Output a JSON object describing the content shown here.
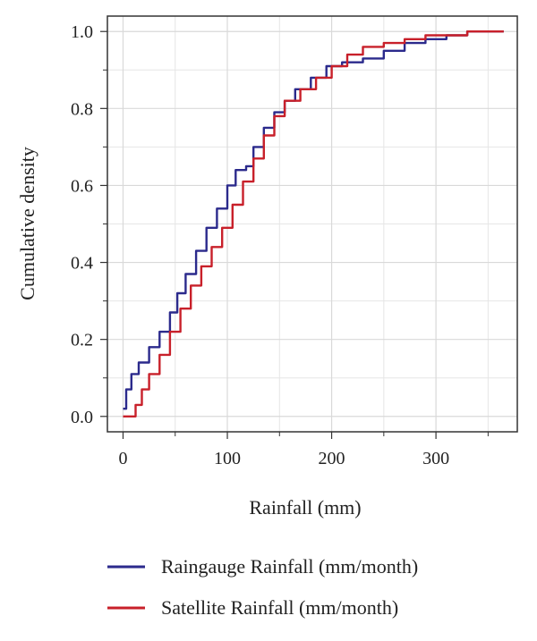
{
  "chart_data": {
    "type": "line",
    "title": "",
    "xlabel": "Rainfall (mm)",
    "ylabel": "Cumulative density",
    "xlim": [
      -15,
      378
    ],
    "ylim": [
      -0.04,
      1.04
    ],
    "x_ticks": [
      0,
      100,
      200,
      300
    ],
    "x_tick_labels": [
      "0",
      "100",
      "200",
      "300"
    ],
    "y_ticks": [
      0.0,
      0.2,
      0.4,
      0.6,
      0.8,
      1.0
    ],
    "y_tick_labels": [
      "0.0",
      "0.2",
      "0.4",
      "0.6",
      "0.8",
      "1.0"
    ],
    "grid": true,
    "legend_position": "bottom",
    "series": [
      {
        "name": "Raingauge Rainfall (mm/month)",
        "color": "#2b2a8c",
        "x": [
          0,
          3,
          8,
          15,
          25,
          35,
          45,
          52,
          60,
          70,
          80,
          90,
          100,
          108,
          118,
          125,
          135,
          145,
          155,
          165,
          180,
          195,
          210,
          230,
          250,
          270,
          290,
          310,
          330,
          350,
          365
        ],
        "y": [
          0.02,
          0.07,
          0.11,
          0.14,
          0.18,
          0.22,
          0.27,
          0.32,
          0.37,
          0.43,
          0.49,
          0.54,
          0.6,
          0.64,
          0.65,
          0.7,
          0.75,
          0.79,
          0.82,
          0.85,
          0.88,
          0.91,
          0.92,
          0.93,
          0.95,
          0.97,
          0.98,
          0.99,
          1.0,
          1.0,
          1.0
        ]
      },
      {
        "name": "Satellite Rainfall (mm/month)",
        "color": "#c8202a",
        "x": [
          0,
          10,
          12,
          18,
          25,
          35,
          45,
          55,
          65,
          75,
          85,
          95,
          105,
          115,
          125,
          135,
          145,
          155,
          170,
          185,
          200,
          215,
          230,
          250,
          270,
          290,
          310,
          330,
          350,
          365
        ],
        "y": [
          0.0,
          0.0,
          0.03,
          0.07,
          0.11,
          0.16,
          0.22,
          0.28,
          0.34,
          0.39,
          0.44,
          0.49,
          0.55,
          0.61,
          0.67,
          0.73,
          0.78,
          0.82,
          0.85,
          0.88,
          0.91,
          0.94,
          0.96,
          0.97,
          0.98,
          0.99,
          0.99,
          1.0,
          1.0,
          1.0
        ]
      }
    ]
  }
}
